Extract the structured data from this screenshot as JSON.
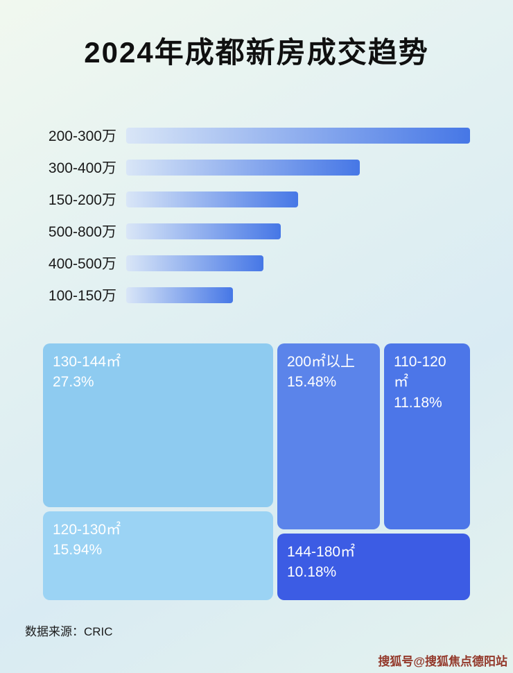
{
  "page": {
    "title": "2024年成都新房成交趋势",
    "source_label": "数据来源：CRIC",
    "watermark": "搜狐号@搜狐焦点德阳站"
  },
  "colors": {
    "bar_gradient_start": "#d9e6f7",
    "bar_gradient_end": "#4677e6",
    "background_start": "#f1f8ef",
    "background_end": "#d9ebf3"
  },
  "chart_data": [
    {
      "type": "bar",
      "title": "2024年成都新房成交趋势",
      "orientation": "horizontal",
      "categories": [
        "200-300万",
        "300-400万",
        "150-200万",
        "500-800万",
        "400-500万",
        "100-150万"
      ],
      "values": [
        100,
        68,
        50,
        45,
        40,
        31
      ],
      "max_value": 100,
      "value_note": "Bars carry no numeric labels in the image; values are relative lengths with the longest bar = 100.",
      "xlabel": "",
      "ylabel": "",
      "grid": false,
      "legend": false
    },
    {
      "type": "treemap",
      "title": "",
      "items": [
        {
          "label": "130-144㎡",
          "value": 27.3,
          "value_display": "27.3%",
          "color": "#8ecbf0"
        },
        {
          "label": "120-130㎡",
          "value": 15.94,
          "value_display": "15.94%",
          "color": "#9bd3f4"
        },
        {
          "label": "200㎡以上",
          "value": 15.48,
          "value_display": "15.48%",
          "color": "#5b84ea"
        },
        {
          "label": "110-120㎡",
          "value": 11.18,
          "value_display": "11.18%",
          "color": "#4c76e8"
        },
        {
          "label": "144-180㎡",
          "value": 10.18,
          "value_display": "10.18%",
          "color": "#3c5ce4"
        }
      ]
    }
  ]
}
